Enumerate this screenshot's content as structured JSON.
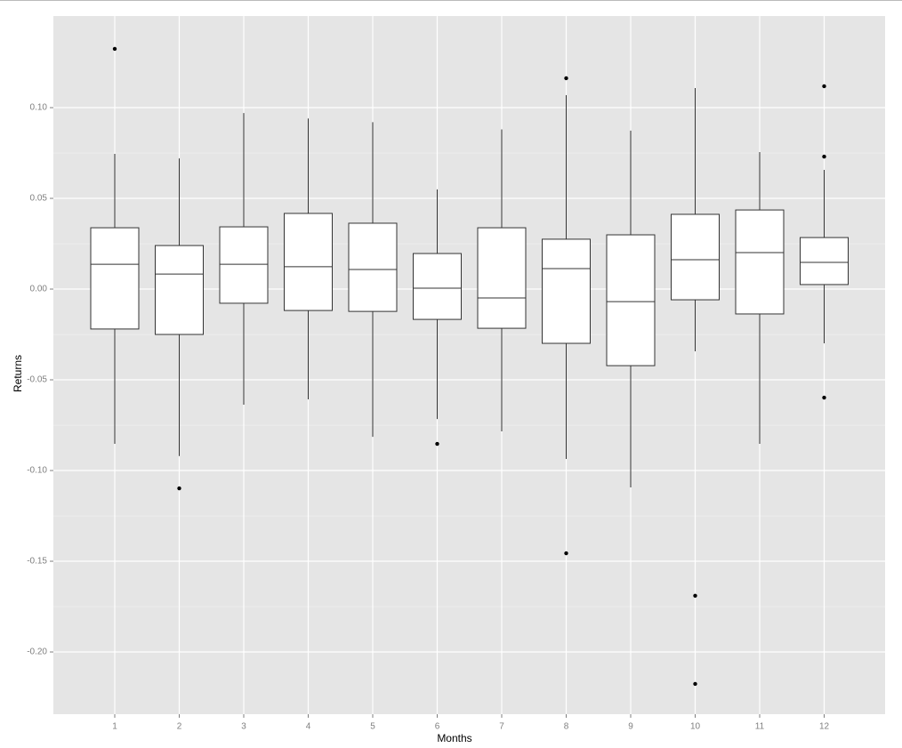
{
  "chart_data": {
    "type": "boxplot",
    "x_label": "Months",
    "y_label": "Returns",
    "categories": [
      "1",
      "2",
      "3",
      "4",
      "5",
      "6",
      "7",
      "8",
      "9",
      "10",
      "11",
      "12"
    ],
    "boxes": [
      {
        "min": -0.0853,
        "q1": -0.022,
        "median": 0.0137,
        "q3": 0.0338,
        "max": 0.0745,
        "outliers": [
          0.1324
        ]
      },
      {
        "min": -0.092,
        "q1": -0.025,
        "median": 0.0083,
        "q3": 0.024,
        "max": 0.072,
        "outliers": [
          -0.1098
        ]
      },
      {
        "min": -0.0637,
        "q1": -0.0078,
        "median": 0.0137,
        "q3": 0.0343,
        "max": 0.097,
        "outliers": []
      },
      {
        "min": -0.0608,
        "q1": -0.0118,
        "median": 0.0123,
        "q3": 0.0417,
        "max": 0.094,
        "outliers": []
      },
      {
        "min": -0.0814,
        "q1": -0.0123,
        "median": 0.0108,
        "q3": 0.0363,
        "max": 0.092,
        "outliers": []
      },
      {
        "min": -0.0716,
        "q1": -0.0167,
        "median": 0.0005,
        "q3": 0.0196,
        "max": 0.0549,
        "outliers": [
          -0.0853
        ]
      },
      {
        "min": -0.0784,
        "q1": -0.0216,
        "median": -0.0049,
        "q3": 0.0338,
        "max": 0.088,
        "outliers": []
      },
      {
        "min": -0.0936,
        "q1": -0.0299,
        "median": 0.0113,
        "q3": 0.0275,
        "max": 0.1069,
        "outliers": [
          0.1162,
          -0.1456
        ]
      },
      {
        "min": -0.1093,
        "q1": -0.0422,
        "median": -0.0069,
        "q3": 0.0299,
        "max": 0.0873,
        "outliers": []
      },
      {
        "min": -0.0343,
        "q1": -0.0059,
        "median": 0.0162,
        "q3": 0.0412,
        "max": 0.1108,
        "outliers": [
          -0.169,
          -0.2176
        ]
      },
      {
        "min": -0.0853,
        "q1": -0.0137,
        "median": 0.0201,
        "q3": 0.0436,
        "max": 0.0755,
        "outliers": []
      },
      {
        "min": -0.0299,
        "q1": 0.0025,
        "median": 0.0147,
        "q3": 0.0284,
        "max": 0.0657,
        "outliers": [
          0.1118,
          0.073,
          -0.0598
        ]
      }
    ],
    "box_color": "#ffffff",
    "line_color": "#333333",
    "panel_color": "#e5e5e5",
    "grid": true,
    "ylim": [
      -0.2343,
      0.1505
    ],
    "yticks": [
      {
        "value": -0.2,
        "label": "-0.20"
      },
      {
        "value": -0.15,
        "label": "-0.15"
      },
      {
        "value": -0.1,
        "label": "-0.10"
      },
      {
        "value": -0.05,
        "label": "-0.05"
      },
      {
        "value": 0,
        "label": "0.00"
      },
      {
        "value": 0.05,
        "label": "0.05"
      },
      {
        "value": 0.1,
        "label": "0.10"
      }
    ]
  }
}
